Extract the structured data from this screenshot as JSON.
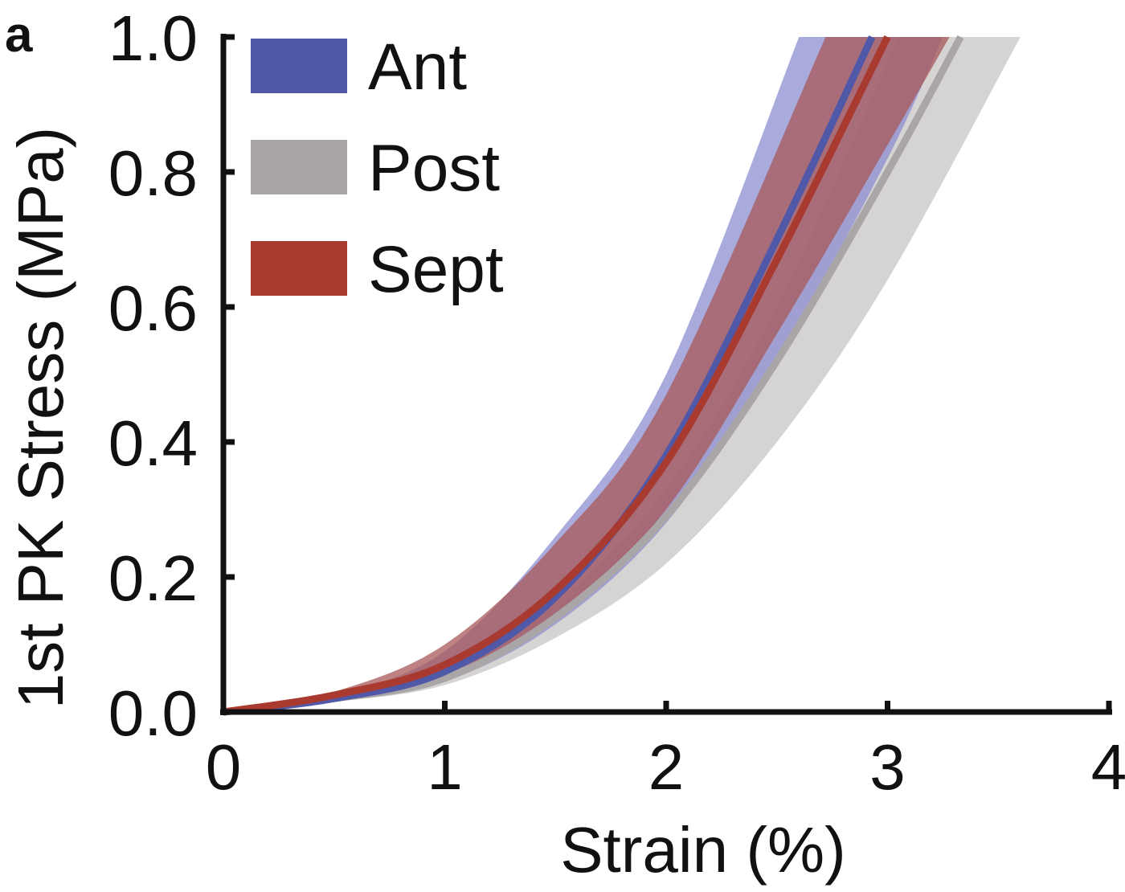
{
  "chart_data": {
    "type": "line",
    "panel_label": "a",
    "xlabel": "Strain (%)",
    "ylabel": "1st PK Stress (MPa)",
    "xlim": [
      0,
      4
    ],
    "ylim": [
      0,
      1.0
    ],
    "xticks": [
      "0",
      "1",
      "2",
      "3",
      "4"
    ],
    "yticks": [
      "0.0",
      "0.2",
      "0.4",
      "0.6",
      "0.8",
      "1.0"
    ],
    "grid": false,
    "legend_placement": "top-left",
    "series": [
      {
        "name": "Ant",
        "color": "#5058a8",
        "band_color": "#8c8fd0",
        "mean": {
          "x": [
            0,
            0.5,
            1,
            1.5,
            2,
            2.5,
            2.93
          ],
          "y": [
            0,
            0.02,
            0.06,
            0.17,
            0.38,
            0.7,
            1.0
          ]
        },
        "band_upper": {
          "x": [
            0,
            0.5,
            1,
            1.5,
            2,
            2.6
          ],
          "y": [
            0,
            0.025,
            0.09,
            0.26,
            0.5,
            1.0
          ]
        },
        "band_lower": {
          "x": [
            0,
            0.5,
            1,
            1.5,
            2,
            2.5,
            3,
            3.25
          ],
          "y": [
            0,
            0.015,
            0.045,
            0.13,
            0.28,
            0.52,
            0.82,
            1.0
          ]
        }
      },
      {
        "name": "Post",
        "color": "#aaa6a7",
        "band_color": "#d5d4d3",
        "mean": {
          "x": [
            0,
            0.5,
            1,
            1.5,
            2,
            2.5,
            3,
            3.33
          ],
          "y": [
            0,
            0.02,
            0.05,
            0.14,
            0.29,
            0.52,
            0.8,
            1.0
          ]
        },
        "band_upper": {
          "x": [
            0,
            0.5,
            1,
            1.5,
            2,
            2.5,
            3.05
          ],
          "y": [
            0,
            0.02,
            0.06,
            0.16,
            0.33,
            0.6,
            1.0
          ]
        },
        "band_lower": {
          "x": [
            0,
            0.5,
            1,
            1.5,
            2,
            2.5,
            3,
            3.6
          ],
          "y": [
            0,
            0.015,
            0.04,
            0.11,
            0.22,
            0.4,
            0.64,
            1.0
          ]
        }
      },
      {
        "name": "Sept",
        "color": "#a83a30",
        "band_color": "#a85858",
        "mean": {
          "x": [
            0,
            0.5,
            1,
            1.5,
            2,
            2.5,
            3
          ],
          "y": [
            0,
            0.025,
            0.07,
            0.18,
            0.37,
            0.67,
            1.0
          ]
        },
        "band_upper": {
          "x": [
            0,
            0.5,
            1,
            1.5,
            2,
            2.72
          ],
          "y": [
            0,
            0.03,
            0.1,
            0.25,
            0.47,
            1.0
          ]
        },
        "band_lower": {
          "x": [
            0,
            0.5,
            1,
            1.5,
            2,
            2.5,
            3,
            3.28
          ],
          "y": [
            0,
            0.02,
            0.05,
            0.14,
            0.3,
            0.56,
            0.84,
            1.0
          ]
        }
      }
    ]
  }
}
